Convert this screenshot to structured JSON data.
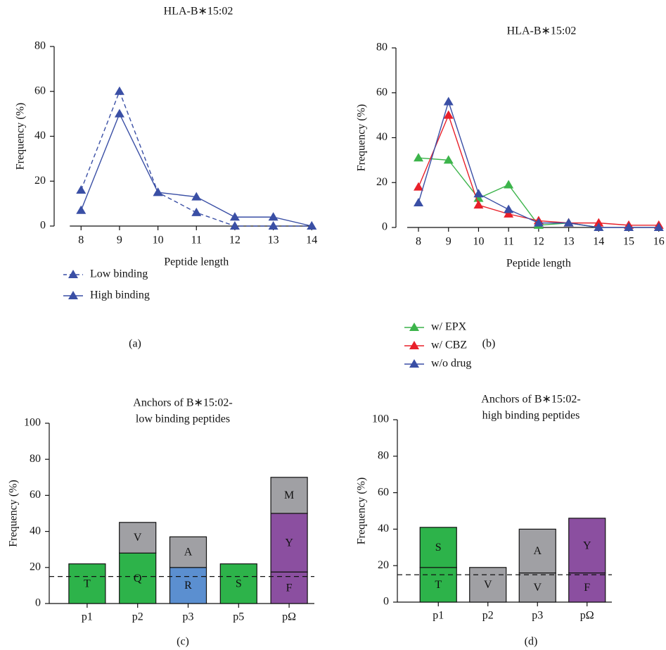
{
  "chart_data": [
    {
      "type": "line",
      "title": [
        "HLA-B∗15:02"
      ],
      "panel_label": "(a)",
      "x_label": "Peptide length",
      "y_label": "Frequency (%)",
      "x": [
        8,
        9,
        10,
        11,
        12,
        13,
        14
      ],
      "xlim": [
        7.3,
        14.05
      ],
      "xticks": [
        8,
        9,
        10,
        11,
        12,
        13,
        14
      ],
      "ylim": [
        0,
        80
      ],
      "yticks": [
        0,
        20,
        40,
        60,
        80
      ],
      "series": [
        {
          "name": "Low binding",
          "color": "#3a4fa5",
          "dash": true,
          "values": [
            16,
            60,
            15,
            6,
            0,
            0,
            0
          ]
        },
        {
          "name": "High binding",
          "color": "#3a4fa5",
          "dash": false,
          "values": [
            7,
            50,
            15,
            13,
            4,
            4,
            0
          ]
        }
      ]
    },
    {
      "type": "line",
      "title": [
        "HLA-B∗15:02"
      ],
      "panel_label": "(b)",
      "x_label": "Peptide length",
      "y_label": "Frequency (%)",
      "x": [
        8,
        9,
        10,
        11,
        12,
        13,
        14,
        15,
        16
      ],
      "xlim": [
        7.25,
        16.1
      ],
      "xticks": [
        8,
        9,
        10,
        11,
        12,
        13,
        14,
        15,
        16
      ],
      "ylim": [
        0,
        80
      ],
      "yticks": [
        0,
        20,
        40,
        60,
        80
      ],
      "series": [
        {
          "name": "w/ EPX",
          "color": "#3cb44b",
          "dash": false,
          "values": [
            31,
            30,
            13,
            19,
            1,
            2,
            0,
            null,
            null
          ]
        },
        {
          "name": "w/ CBZ",
          "color": "#e8202a",
          "dash": false,
          "values": [
            18,
            50,
            10,
            6,
            3,
            2,
            2,
            1,
            1
          ]
        },
        {
          "name": "w/o drug",
          "color": "#3a4fa5",
          "dash": false,
          "values": [
            11,
            56,
            15,
            8,
            2,
            2,
            0,
            0,
            0
          ]
        }
      ]
    },
    {
      "type": "stacked_bar",
      "title": [
        "Anchors of B∗15:02-",
        "low binding peptides"
      ],
      "panel_label": "(c)",
      "y_label": "Frequency (%)",
      "ylim": [
        0,
        100
      ],
      "yticks": [
        0,
        20,
        40,
        60,
        80,
        100
      ],
      "threshold": 15,
      "categories": [
        "p1",
        "p2",
        "p3",
        "p5",
        "pΩ"
      ],
      "bars": [
        {
          "segments": [
            {
              "label": "T",
              "value": 22,
              "color": "#2db34a"
            }
          ]
        },
        {
          "segments": [
            {
              "label": "Q",
              "value": 28,
              "color": "#2db34a"
            },
            {
              "label": "V",
              "value": 17,
              "color": "#a0a0a4"
            }
          ]
        },
        {
          "segments": [
            {
              "label": "R",
              "value": 20,
              "color": "#5b8fd0"
            },
            {
              "label": "A",
              "value": 17,
              "color": "#a0a0a4"
            }
          ]
        },
        {
          "segments": [
            {
              "label": "S",
              "value": 22,
              "color": "#2db34a"
            }
          ]
        },
        {
          "segments": [
            {
              "label": "F",
              "value": 17.5,
              "color": "#8b4fa0"
            },
            {
              "label": "Y",
              "value": 32.5,
              "color": "#8b4fa0"
            },
            {
              "label": "M",
              "value": 20,
              "color": "#a0a0a4"
            }
          ]
        }
      ]
    },
    {
      "type": "stacked_bar",
      "title": [
        "Anchors of B∗15:02-",
        "high binding peptides"
      ],
      "panel_label": "(d)",
      "y_label": "Frequency (%)",
      "ylim": [
        0,
        100
      ],
      "yticks": [
        0,
        20,
        40,
        60,
        80,
        100
      ],
      "threshold": 15,
      "categories": [
        "p1",
        "p2",
        "p3",
        "pΩ"
      ],
      "bars": [
        {
          "segments": [
            {
              "label": "T",
              "value": 19,
              "color": "#2db34a"
            },
            {
              "label": "S",
              "value": 22,
              "color": "#2db34a"
            }
          ]
        },
        {
          "segments": [
            {
              "label": "V",
              "value": 19,
              "color": "#a0a0a4"
            }
          ]
        },
        {
          "segments": [
            {
              "label": "V",
              "value": 16,
              "color": "#a0a0a4"
            },
            {
              "label": "A",
              "value": 24,
              "color": "#a0a0a4"
            }
          ]
        },
        {
          "segments": [
            {
              "label": "F",
              "value": 16,
              "color": "#8b4fa0"
            },
            {
              "label": "Y",
              "value": 30,
              "color": "#8b4fa0"
            }
          ]
        }
      ]
    }
  ]
}
